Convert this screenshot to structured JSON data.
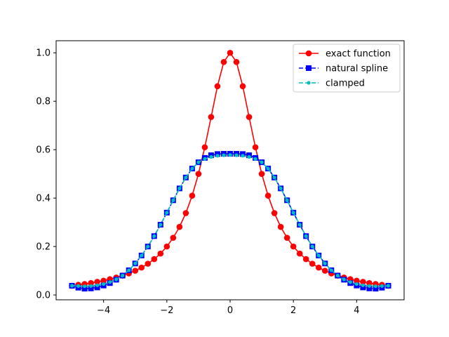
{
  "chart_data": {
    "type": "line",
    "title": "",
    "xlabel": "",
    "ylabel": "",
    "xlim": [
      -5.5,
      5.5
    ],
    "ylim": [
      -0.02,
      1.05
    ],
    "x_ticks": [
      -4,
      -2,
      0,
      2,
      4
    ],
    "x_tick_labels": [
      "−4",
      "−2",
      "0",
      "2",
      "4"
    ],
    "y_ticks": [
      0.0,
      0.2,
      0.4,
      0.6,
      0.8,
      1.0
    ],
    "y_tick_labels": [
      "0.0",
      "0.2",
      "0.4",
      "0.6",
      "0.8",
      "1.0"
    ],
    "grid": false,
    "legend_position": "top-right",
    "series": [
      {
        "name": "exact function",
        "color": "#ff0000",
        "marker": "circle",
        "line_style": "solid",
        "x": [
          -5.0,
          -4.8,
          -4.6,
          -4.4,
          -4.2,
          -4.0,
          -3.8,
          -3.6,
          -3.4,
          -3.2,
          -3.0,
          -2.8,
          -2.6,
          -2.4,
          -2.2,
          -2.0,
          -1.8,
          -1.6,
          -1.4,
          -1.2,
          -1.0,
          -0.8,
          -0.6,
          -0.4,
          -0.2,
          0.0,
          0.2,
          0.4,
          0.6,
          0.8,
          1.0,
          1.2,
          1.4,
          1.6,
          1.8,
          2.0,
          2.2,
          2.4,
          2.6,
          2.8,
          3.0,
          3.2,
          3.4,
          3.6,
          3.8,
          4.0,
          4.2,
          4.4,
          4.6,
          4.8,
          5.0
        ],
        "y": [
          0.038,
          0.042,
          0.045,
          0.049,
          0.054,
          0.059,
          0.065,
          0.072,
          0.08,
          0.089,
          0.1,
          0.113,
          0.129,
          0.148,
          0.171,
          0.2,
          0.236,
          0.281,
          0.338,
          0.41,
          0.5,
          0.61,
          0.735,
          0.862,
          0.962,
          1.0,
          0.962,
          0.862,
          0.735,
          0.61,
          0.5,
          0.41,
          0.338,
          0.281,
          0.236,
          0.2,
          0.171,
          0.148,
          0.129,
          0.113,
          0.1,
          0.089,
          0.08,
          0.072,
          0.065,
          0.059,
          0.054,
          0.049,
          0.045,
          0.042,
          0.038
        ]
      },
      {
        "name": "natural spline",
        "color": "#0000ff",
        "marker": "square",
        "line_style": "dashed",
        "x": [
          -5.0,
          -4.8,
          -4.6,
          -4.4,
          -4.2,
          -4.0,
          -3.8,
          -3.6,
          -3.4,
          -3.2,
          -3.0,
          -2.8,
          -2.6,
          -2.4,
          -2.2,
          -2.0,
          -1.8,
          -1.6,
          -1.4,
          -1.2,
          -1.0,
          -0.8,
          -0.6,
          -0.4,
          -0.2,
          0.0,
          0.2,
          0.4,
          0.6,
          0.8,
          1.0,
          1.2,
          1.4,
          1.6,
          1.8,
          2.0,
          2.2,
          2.4,
          2.6,
          2.8,
          3.0,
          3.2,
          3.4,
          3.6,
          3.8,
          4.0,
          4.2,
          4.4,
          4.6,
          4.8,
          5.0
        ],
        "y": [
          0.038,
          0.03,
          0.026,
          0.027,
          0.031,
          0.039,
          0.049,
          0.063,
          0.08,
          0.102,
          0.13,
          0.163,
          0.2,
          0.243,
          0.29,
          0.34,
          0.391,
          0.44,
          0.485,
          0.522,
          0.548,
          0.566,
          0.577,
          0.582,
          0.583,
          0.583,
          0.583,
          0.582,
          0.577,
          0.566,
          0.548,
          0.522,
          0.485,
          0.44,
          0.391,
          0.34,
          0.29,
          0.243,
          0.2,
          0.163,
          0.13,
          0.102,
          0.08,
          0.063,
          0.049,
          0.039,
          0.031,
          0.027,
          0.026,
          0.03,
          0.038
        ]
      },
      {
        "name": "clamped",
        "color": "#00bfbf",
        "marker": "small-circle",
        "line_style": "dashed",
        "x": [
          -5.0,
          -4.8,
          -4.6,
          -4.4,
          -4.2,
          -4.0,
          -3.8,
          -3.6,
          -3.4,
          -3.2,
          -3.0,
          -2.8,
          -2.6,
          -2.4,
          -2.2,
          -2.0,
          -1.8,
          -1.6,
          -1.4,
          -1.2,
          -1.0,
          -0.8,
          -0.6,
          -0.4,
          -0.2,
          0.0,
          0.2,
          0.4,
          0.6,
          0.8,
          1.0,
          1.2,
          1.4,
          1.6,
          1.8,
          2.0,
          2.2,
          2.4,
          2.6,
          2.8,
          3.0,
          3.2,
          3.4,
          3.6,
          3.8,
          4.0,
          4.2,
          4.4,
          4.6,
          4.8,
          5.0
        ],
        "y": [
          0.038,
          0.037,
          0.036,
          0.037,
          0.04,
          0.045,
          0.053,
          0.064,
          0.08,
          0.102,
          0.13,
          0.163,
          0.2,
          0.243,
          0.29,
          0.34,
          0.391,
          0.44,
          0.485,
          0.522,
          0.548,
          0.562,
          0.57,
          0.575,
          0.577,
          0.578,
          0.577,
          0.575,
          0.57,
          0.562,
          0.548,
          0.522,
          0.485,
          0.44,
          0.391,
          0.34,
          0.29,
          0.243,
          0.2,
          0.163,
          0.13,
          0.102,
          0.08,
          0.064,
          0.053,
          0.045,
          0.04,
          0.037,
          0.036,
          0.037,
          0.038
        ]
      }
    ]
  }
}
